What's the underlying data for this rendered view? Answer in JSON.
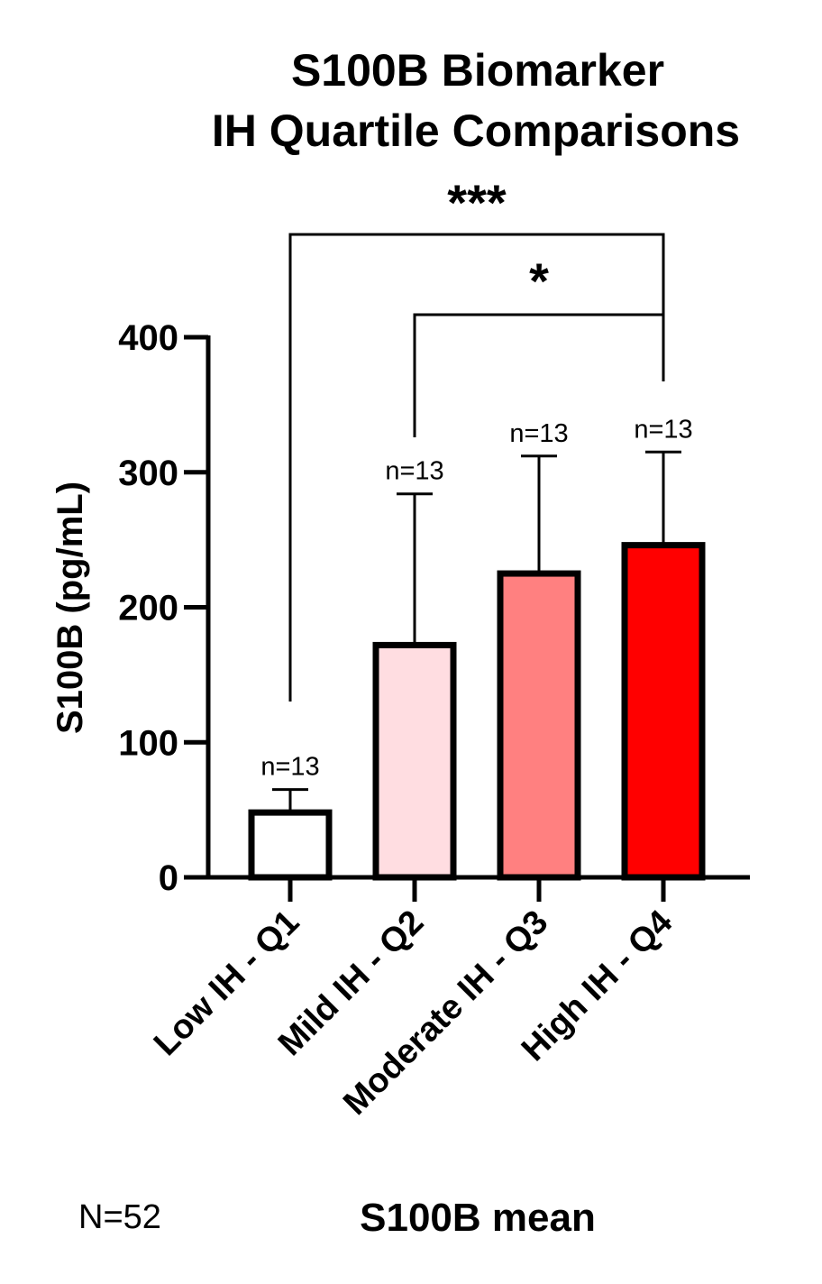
{
  "chart_data": {
    "type": "bar",
    "title_lines": [
      "S100B Biomarker",
      "IH Quartile Comparisons"
    ],
    "xlabel": "S100B mean",
    "ylabel": "S100B (pg/mL)",
    "ylim": [
      0,
      400
    ],
    "yticks": [
      "0",
      "100",
      "200",
      "300",
      "400"
    ],
    "categories": [
      "Low IH - Q1",
      "Mild IH - Q2",
      "Moderate IH - Q3",
      "High IH - Q4"
    ],
    "values": [
      48,
      172,
      225,
      246
    ],
    "error_upper": [
      65,
      284,
      312,
      315
    ],
    "n_labels": [
      "n=13",
      "n=13",
      "n=13",
      "n=13"
    ],
    "colors": [
      "#ffffff",
      "#ffdde1",
      "#ff8080",
      "#ff0000"
    ],
    "significance": [
      {
        "from": 0,
        "to": 3,
        "label": "***"
      },
      {
        "from": 1,
        "to": 3,
        "label": "*"
      }
    ],
    "footnote": "N=52"
  }
}
